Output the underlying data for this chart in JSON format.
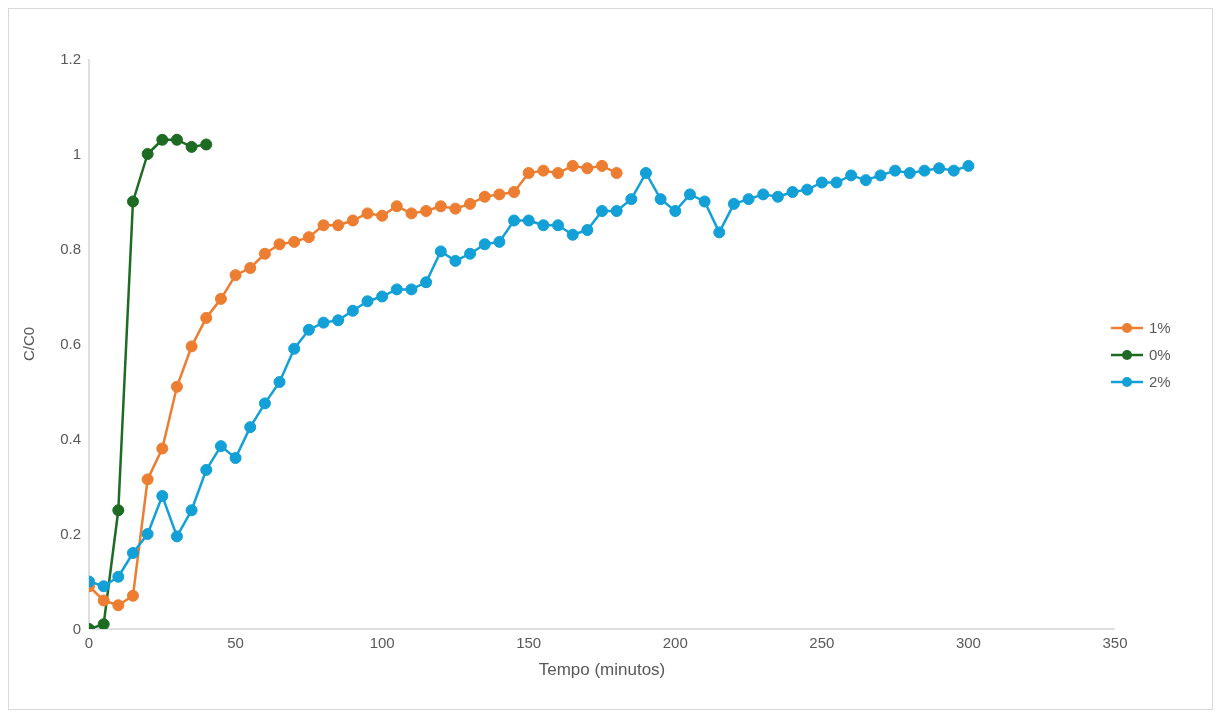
{
  "chart_data": {
    "type": "line",
    "xlabel": "Tempo (minutos)",
    "ylabel": "C/C0",
    "xlim": [
      0,
      350
    ],
    "xticks": [
      0,
      50,
      100,
      150,
      200,
      250,
      300,
      350
    ],
    "ylim": [
      0,
      1.2
    ],
    "yticks": [
      0,
      0.2,
      0.4,
      0.6,
      0.8,
      1,
      1.2
    ],
    "grid": false,
    "legend": "right",
    "marker": "circle",
    "line_style": "solid",
    "series": [
      {
        "name": "1%",
        "color": "#ed7d31",
        "x": [
          0,
          5,
          10,
          15,
          20,
          25,
          30,
          35,
          40,
          45,
          50,
          55,
          60,
          65,
          70,
          75,
          80,
          85,
          90,
          95,
          100,
          105,
          110,
          115,
          120,
          125,
          130,
          135,
          140,
          145,
          150,
          155,
          160,
          165,
          170,
          175,
          180
        ],
        "values": [
          0.09,
          0.06,
          0.05,
          0.07,
          0.315,
          0.38,
          0.51,
          0.595,
          0.655,
          0.695,
          0.745,
          0.76,
          0.79,
          0.81,
          0.815,
          0.825,
          0.85,
          0.85,
          0.86,
          0.875,
          0.87,
          0.89,
          0.875,
          0.88,
          0.89,
          0.885,
          0.895,
          0.91,
          0.915,
          0.92,
          0.96,
          0.965,
          0.96,
          0.975,
          0.97,
          0.975,
          0.96
        ]
      },
      {
        "name": "0%",
        "color": "#1e6b24",
        "x": [
          0,
          5,
          10,
          15,
          20,
          25,
          30,
          35,
          40
        ],
        "values": [
          0,
          0.01,
          0.25,
          0.9,
          1.0,
          1.03,
          1.03,
          1.015,
          1.02
        ]
      },
      {
        "name": "2%",
        "color": "#12a0d7",
        "x": [
          0,
          5,
          10,
          15,
          20,
          25,
          30,
          35,
          40,
          45,
          50,
          55,
          60,
          65,
          70,
          75,
          80,
          85,
          90,
          95,
          100,
          105,
          110,
          115,
          120,
          125,
          130,
          135,
          140,
          145,
          150,
          155,
          160,
          165,
          170,
          175,
          180,
          185,
          190,
          195,
          200,
          205,
          210,
          215,
          220,
          225,
          230,
          235,
          240,
          245,
          250,
          255,
          260,
          265,
          270,
          275,
          280,
          285,
          290,
          295,
          300
        ],
        "values": [
          0.1,
          0.09,
          0.11,
          0.16,
          0.2,
          0.28,
          0.195,
          0.25,
          0.335,
          0.385,
          0.36,
          0.425,
          0.475,
          0.52,
          0.59,
          0.63,
          0.645,
          0.65,
          0.67,
          0.69,
          0.7,
          0.715,
          0.715,
          0.73,
          0.795,
          0.775,
          0.79,
          0.81,
          0.815,
          0.86,
          0.86,
          0.85,
          0.85,
          0.83,
          0.84,
          0.88,
          0.88,
          0.905,
          0.96,
          0.905,
          0.88,
          0.915,
          0.9,
          0.835,
          0.895,
          0.905,
          0.915,
          0.91,
          0.92,
          0.925,
          0.94,
          0.94,
          0.955,
          0.945,
          0.955,
          0.965,
          0.96,
          0.965,
          0.97,
          0.965,
          0.975
        ]
      }
    ]
  }
}
